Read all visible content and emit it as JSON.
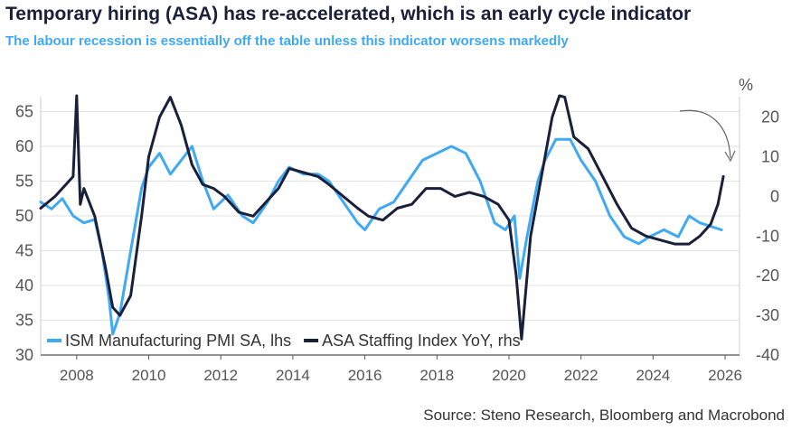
{
  "header": {
    "title": "Temporary hiring (ASA) has re-accelerated, which is an early cycle indicator",
    "subtitle": "The labour recession is essentially off the table unless this indicator worsens markedly"
  },
  "footer": {
    "source": "Source: Steno Research, Bloomberg and Macrobond"
  },
  "colors": {
    "pmi": "#3fa9f5",
    "asa": "#1a1f3a",
    "grid": "#e2e2e2",
    "axis": "#666666"
  },
  "chart_data": {
    "type": "line",
    "ylabel_right": "%",
    "xlim": [
      2007.0,
      2026.4
    ],
    "ylim_left": [
      30,
      66.5
    ],
    "ylim_right": [
      -40,
      24
    ],
    "xticks": [
      2008,
      2010,
      2012,
      2014,
      2016,
      2018,
      2020,
      2022,
      2024,
      2026
    ],
    "yticks_left": [
      30,
      35,
      40,
      45,
      50,
      55,
      60,
      65
    ],
    "yticks_right": [
      -40,
      -30,
      -20,
      -10,
      0,
      10,
      20
    ],
    "grid": true,
    "legend_position": "bottom-left",
    "annotation": "curved arrow pointing to latest ASA value",
    "series": [
      {
        "name": "ISM Manufacturing PMI SA, lhs",
        "axis": "left",
        "x": [
          2007.0,
          2007.3,
          2007.6,
          2007.9,
          2008.2,
          2008.5,
          2008.7,
          2008.9,
          2009.0,
          2009.2,
          2009.5,
          2009.8,
          2010.0,
          2010.3,
          2010.6,
          2010.9,
          2011.2,
          2011.5,
          2011.8,
          2012.2,
          2012.6,
          2012.9,
          2013.3,
          2013.6,
          2013.9,
          2014.3,
          2014.7,
          2015.0,
          2015.4,
          2015.8,
          2016.0,
          2016.4,
          2016.8,
          2017.2,
          2017.6,
          2018.0,
          2018.4,
          2018.8,
          2019.2,
          2019.6,
          2019.9,
          2020.15,
          2020.3,
          2020.5,
          2020.8,
          2021.0,
          2021.3,
          2021.7,
          2022.0,
          2022.4,
          2022.8,
          2023.2,
          2023.6,
          2023.9,
          2024.3,
          2024.7,
          2025.0,
          2025.3,
          2025.6,
          2025.9
        ],
        "values": [
          52,
          51,
          52.5,
          50,
          49,
          49.5,
          45,
          38,
          33,
          36,
          45,
          54,
          57,
          59,
          56,
          58,
          60,
          55,
          51,
          53,
          50,
          49,
          52,
          55,
          57,
          56,
          56,
          55,
          52,
          49,
          48,
          51,
          52,
          55,
          58,
          59,
          60,
          59,
          55,
          49,
          48,
          50,
          41,
          47,
          55,
          58,
          61,
          61,
          58,
          55,
          50,
          47,
          46,
          47,
          48,
          47,
          50,
          49,
          48.5,
          48
        ]
      },
      {
        "name": "ASA Staffing Index YoY, rhs",
        "axis": "right",
        "x": [
          2007.0,
          2007.4,
          2007.7,
          2007.9,
          2008.0,
          2008.1,
          2008.2,
          2008.5,
          2008.8,
          2009.0,
          2009.2,
          2009.5,
          2009.8,
          2010.0,
          2010.3,
          2010.6,
          2010.9,
          2011.2,
          2011.5,
          2011.8,
          2012.1,
          2012.5,
          2012.9,
          2013.3,
          2013.6,
          2013.9,
          2014.3,
          2014.7,
          2015.0,
          2015.4,
          2015.8,
          2016.1,
          2016.5,
          2016.9,
          2017.3,
          2017.7,
          2018.1,
          2018.5,
          2018.9,
          2019.3,
          2019.7,
          2020.0,
          2020.2,
          2020.35,
          2020.6,
          2020.9,
          2021.2,
          2021.4,
          2021.55,
          2021.8,
          2022.2,
          2022.6,
          2023.0,
          2023.4,
          2023.8,
          2024.2,
          2024.6,
          2025.0,
          2025.3,
          2025.6,
          2025.8,
          2025.95
        ],
        "values": [
          -3,
          0,
          3,
          5,
          30,
          -2,
          2,
          -5,
          -18,
          -28,
          -30,
          -25,
          -5,
          10,
          20,
          25,
          18,
          8,
          3,
          2,
          0,
          -4,
          -5,
          -1,
          2,
          7,
          6,
          5,
          3,
          0,
          -3,
          -5,
          -6,
          -3,
          -2,
          2,
          2,
          0,
          1,
          0,
          -2,
          -6,
          -20,
          -36,
          -10,
          5,
          20,
          30,
          25,
          15,
          12,
          5,
          -2,
          -8,
          -10,
          -11,
          -12,
          -12,
          -10,
          -7,
          -2,
          5
        ]
      }
    ]
  }
}
